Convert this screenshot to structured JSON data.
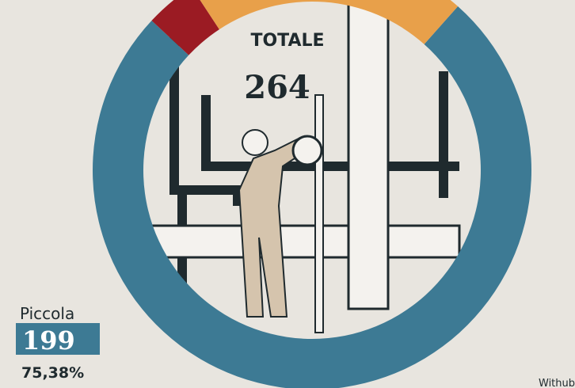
{
  "chart_data": {
    "type": "donut",
    "categories": [
      "Piccola",
      null,
      null
    ],
    "values": [
      199,
      10,
      55
    ],
    "colors": [
      "#3d7a94",
      "#9b1b23",
      "#e8a04a"
    ],
    "share_label": "75,38%",
    "total_label": "TOTALE",
    "total": 264,
    "source": "Withub"
  }
}
